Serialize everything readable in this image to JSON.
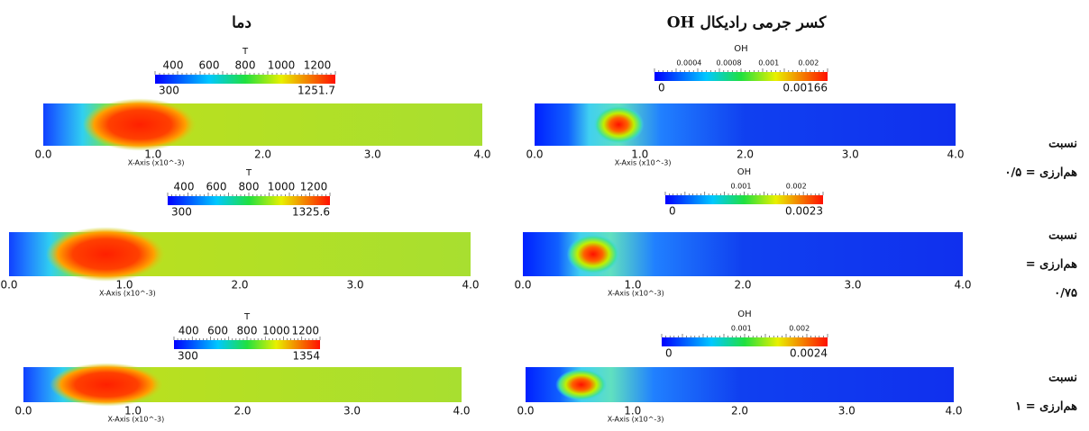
{
  "columns": [
    {
      "title": "دما"
    },
    {
      "title": "کسر جرمی رادیکال OH"
    }
  ],
  "rows": [
    {
      "label": [
        "نسبت",
        "هم‌ارزی = ۰/۵"
      ],
      "panels": [
        {
          "colorbar": {
            "title": "T",
            "ticks": [
              "400",
              "600",
              "800",
              "1000",
              "1200"
            ],
            "min": "300",
            "max": "1251.7"
          },
          "x_axis": {
            "ticks": [
              "0.0",
              "1.0",
              "2.0",
              "3.0",
              "4.0"
            ],
            "label": "X-Axis (x10^-3)"
          }
        },
        {
          "colorbar": {
            "title": "OH",
            "ticks": [
              "0.0004",
              "0.0008",
              "0.001",
              "0.002"
            ],
            "min": "0",
            "max": "0.00166"
          },
          "x_axis": {
            "ticks": [
              "0.0",
              "1.0",
              "2.0",
              "3.0",
              "4.0"
            ],
            "label": "X-Axis (x10^-3)"
          }
        }
      ]
    },
    {
      "label": [
        "نسبت",
        "هم‌ارزی =",
        "۰/۷۵"
      ],
      "panels": [
        {
          "colorbar": {
            "title": "T",
            "ticks": [
              "400",
              "600",
              "800",
              "1000",
              "1200"
            ],
            "min": "300",
            "max": "1325.6"
          },
          "x_axis": {
            "ticks": [
              "0.0",
              "1.0",
              "2.0",
              "3.0",
              "4.0"
            ],
            "label": "X-Axis (x10^-3)"
          }
        },
        {
          "colorbar": {
            "title": "OH",
            "ticks": [
              "0.001",
              "0.002"
            ],
            "min": "0",
            "max": "0.0023"
          },
          "x_axis": {
            "ticks": [
              "0.0",
              "1.0",
              "2.0",
              "3.0",
              "4.0"
            ],
            "label": "X-Axis (x10^-3)"
          }
        }
      ]
    },
    {
      "label": [
        "نسبت",
        "هم‌ارزی = ۱"
      ],
      "panels": [
        {
          "colorbar": {
            "title": "T",
            "ticks": [
              "400",
              "600",
              "800",
              "1000",
              "1200"
            ],
            "min": "300",
            "max": "1354"
          },
          "x_axis": {
            "ticks": [
              "0.0",
              "1.0",
              "2.0",
              "3.0",
              "4.0"
            ],
            "label": "X-Axis (x10^-3)"
          }
        },
        {
          "colorbar": {
            "title": "OH",
            "ticks": [
              "0.001",
              "0.002"
            ],
            "min": "0",
            "max": "0.0024"
          },
          "x_axis": {
            "ticks": [
              "0.0",
              "1.0",
              "2.0",
              "3.0",
              "4.0"
            ],
            "label": "X-Axis (x10^-3)"
          }
        }
      ]
    }
  ]
}
